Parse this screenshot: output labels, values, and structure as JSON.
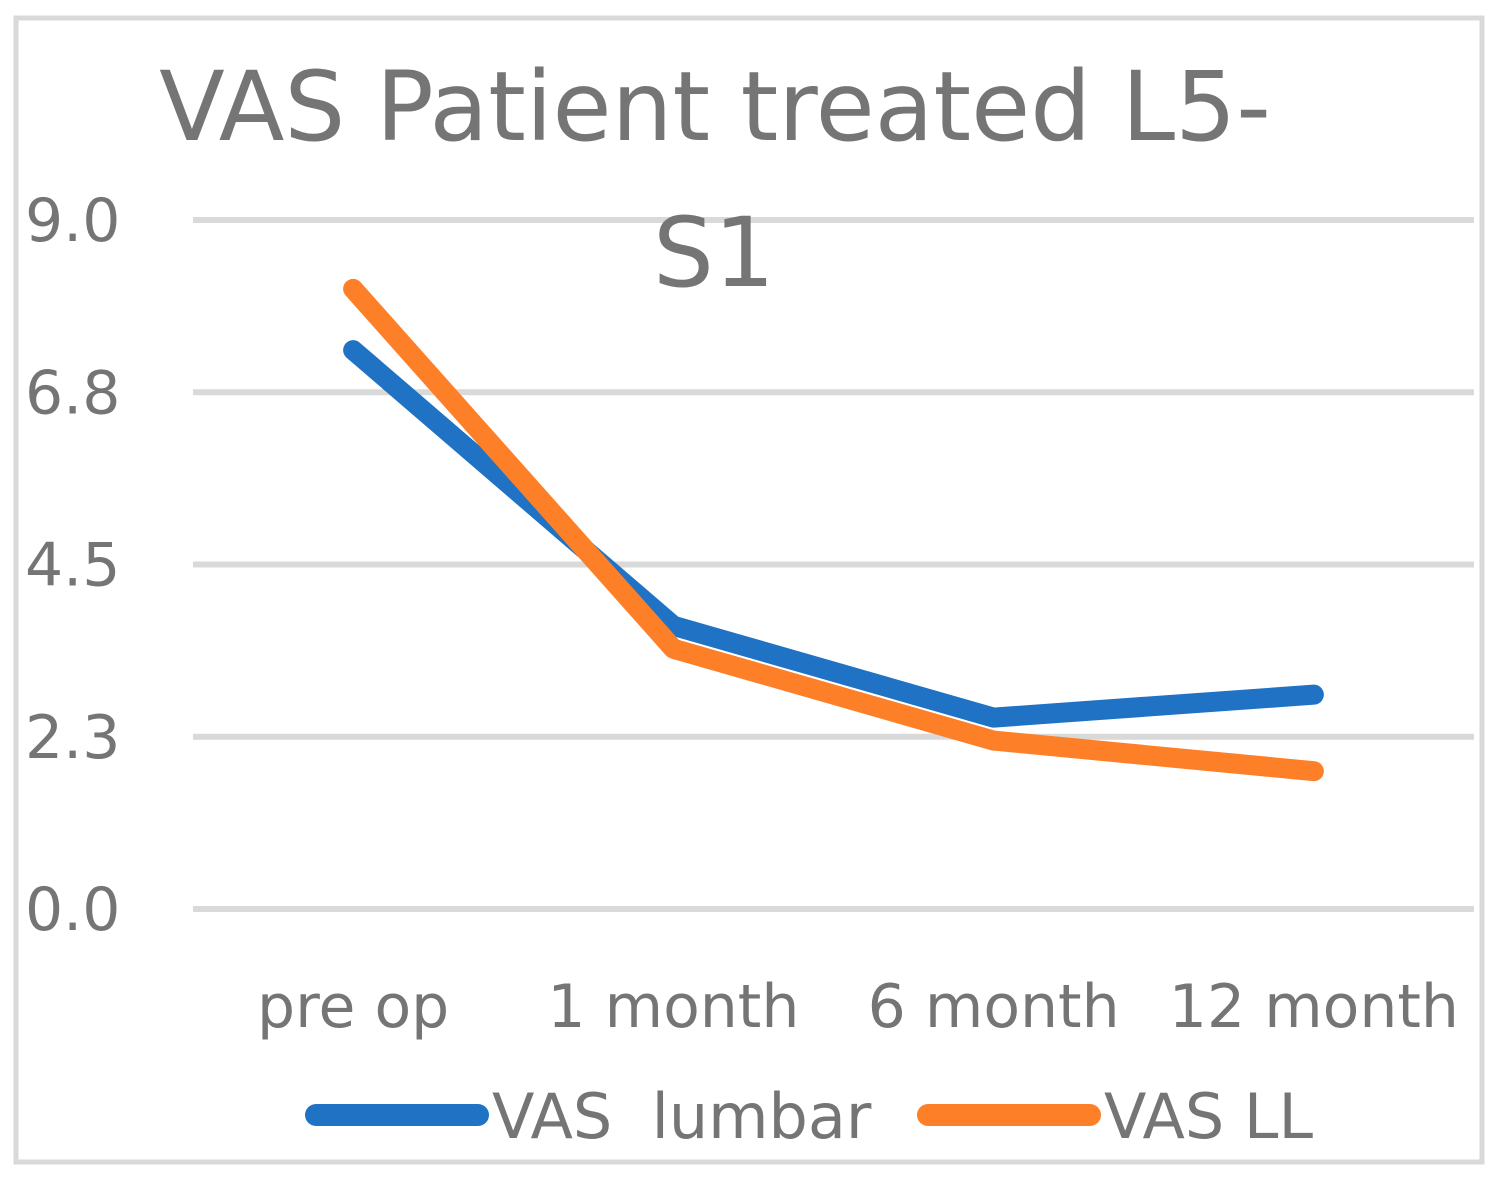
{
  "chart_data": {
    "type": "line",
    "title_lines": [
      "VAS Patient treated L5-",
      "S1"
    ],
    "categories": [
      "pre op",
      "1 month",
      "6 month",
      "12 month"
    ],
    "y_ticks": [
      "0.0",
      "2.3",
      "4.5",
      "6.8",
      "9.0"
    ],
    "ylim": [
      0,
      9
    ],
    "grid": true,
    "legend_position": "bottom",
    "series": [
      {
        "name": "VAS  lumbar",
        "color": "#1f72c4",
        "values": [
          7.3,
          3.7,
          2.5,
          2.8
        ]
      },
      {
        "name": "VAS LL",
        "color": "#fd7f28",
        "values": [
          8.1,
          3.4,
          2.2,
          1.8
        ]
      }
    ]
  }
}
